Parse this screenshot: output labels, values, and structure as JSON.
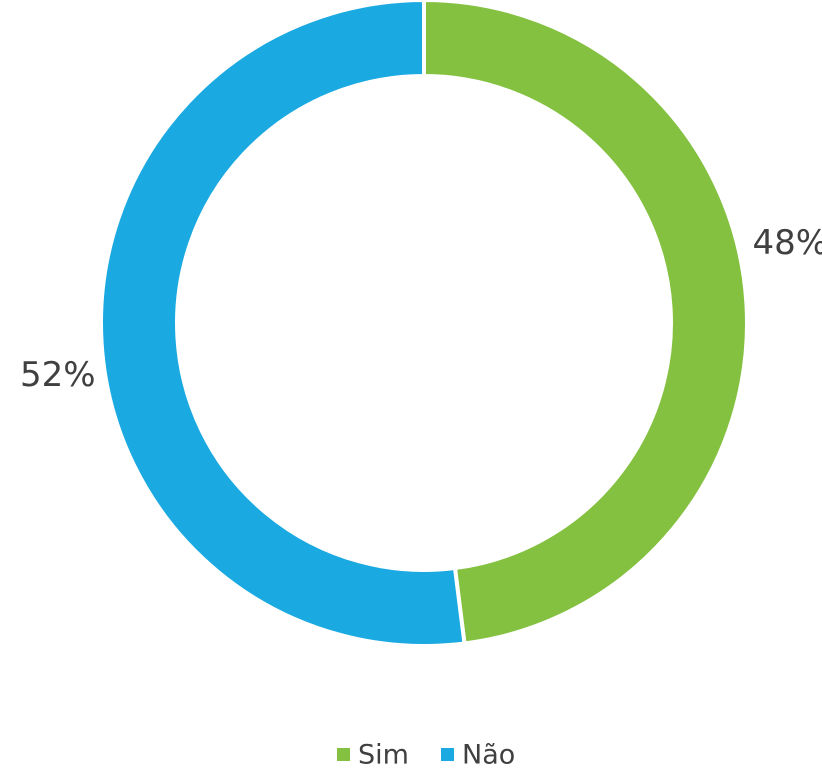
{
  "chart_data": {
    "type": "donut",
    "categories": [
      "Sim",
      "Não"
    ],
    "values": [
      48,
      52
    ],
    "value_labels": [
      "48%",
      "52%"
    ],
    "colors": [
      "#84c141",
      "#1ba9e1"
    ],
    "legend": "bottom"
  }
}
